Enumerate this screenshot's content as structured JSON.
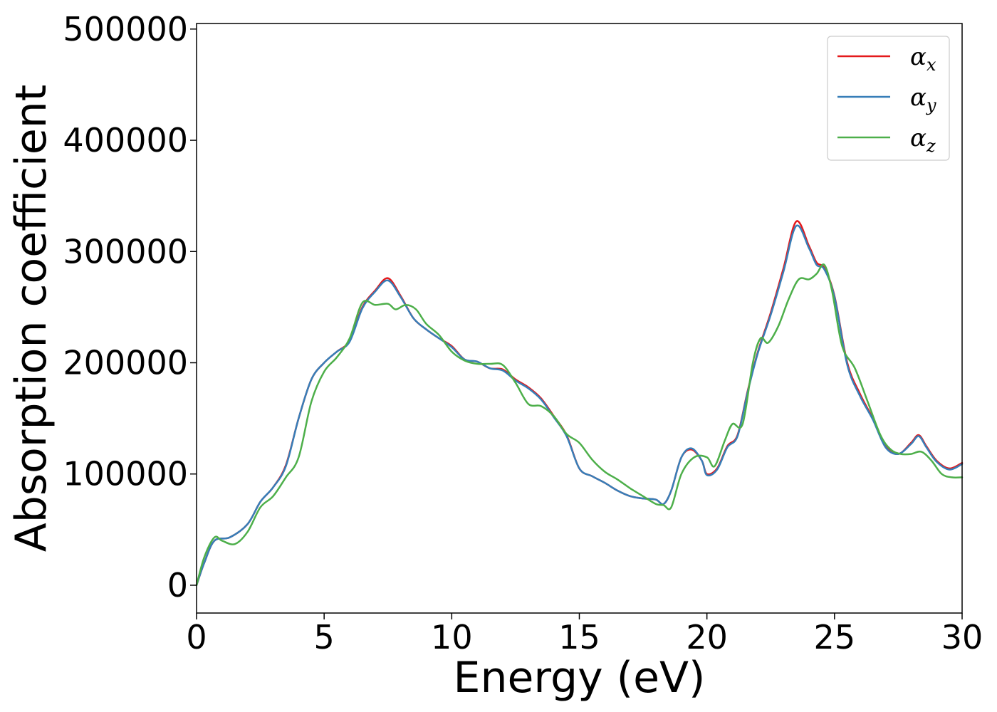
{
  "chart_data": {
    "type": "line",
    "title": "",
    "xlabel": "Energy (eV)",
    "ylabel": "Absorption coefficient",
    "xlim": [
      0,
      30
    ],
    "ylim": [
      -25000,
      505000
    ],
    "xticks": [
      0,
      5,
      10,
      15,
      20,
      25,
      30
    ],
    "xtick_labels": [
      "0",
      "5",
      "10",
      "15",
      "20",
      "25",
      "30"
    ],
    "yticks": [
      0,
      100000,
      200000,
      300000,
      400000,
      500000
    ],
    "ytick_labels": [
      "0",
      "100000",
      "200000",
      "300000",
      "400000",
      "500000"
    ],
    "grid": false,
    "legend_position": "top-right",
    "series": [
      {
        "name": "αx",
        "symbol": "α",
        "subscript": "x",
        "color": "#e41a1c",
        "x": [
          0,
          0.3,
          0.7,
          1.3,
          2.0,
          2.5,
          3.0,
          3.5,
          4.0,
          4.5,
          5.0,
          5.5,
          6.0,
          6.5,
          7.0,
          7.5,
          8.0,
          8.5,
          9.0,
          9.5,
          10.0,
          10.5,
          11.0,
          11.5,
          12.0,
          12.5,
          13.0,
          13.5,
          14.0,
          14.5,
          15.0,
          15.5,
          16.0,
          16.5,
          17.0,
          17.5,
          18.0,
          18.3,
          18.6,
          19.0,
          19.4,
          19.8,
          20.0,
          20.4,
          20.8,
          21.2,
          21.6,
          22.0,
          22.5,
          23.0,
          23.5,
          24.0,
          24.3,
          24.6,
          25.0,
          25.5,
          26.0,
          26.5,
          27.0,
          27.5,
          28.0,
          28.3,
          28.6,
          29.0,
          29.5,
          30.0
        ],
        "y": [
          0,
          20000,
          40000,
          43000,
          55000,
          75000,
          88000,
          108000,
          150000,
          185000,
          200000,
          210000,
          220000,
          250000,
          265000,
          276000,
          260000,
          240000,
          230000,
          222000,
          215000,
          203000,
          201000,
          195000,
          194000,
          185000,
          178000,
          168000,
          152000,
          135000,
          105000,
          98000,
          92000,
          85000,
          80000,
          78000,
          77000,
          73000,
          85000,
          115000,
          122000,
          112000,
          100000,
          105000,
          125000,
          135000,
          175000,
          210000,
          245000,
          285000,
          327000,
          305000,
          290000,
          285000,
          260000,
          200000,
          172000,
          150000,
          125000,
          118000,
          128000,
          135000,
          125000,
          112000,
          105000,
          110000
        ]
      },
      {
        "name": "αy",
        "symbol": "α",
        "subscript": "y",
        "color": "#377eb8",
        "x": [
          0,
          0.3,
          0.7,
          1.3,
          2.0,
          2.5,
          3.0,
          3.5,
          4.0,
          4.5,
          5.0,
          5.5,
          6.0,
          6.5,
          7.0,
          7.5,
          8.0,
          8.5,
          9.0,
          9.5,
          10.0,
          10.5,
          11.0,
          11.5,
          12.0,
          12.5,
          13.0,
          13.5,
          14.0,
          14.5,
          15.0,
          15.5,
          16.0,
          16.5,
          17.0,
          17.5,
          18.0,
          18.3,
          18.6,
          19.0,
          19.4,
          19.8,
          20.0,
          20.4,
          20.8,
          21.2,
          21.6,
          22.0,
          22.5,
          23.0,
          23.5,
          24.0,
          24.3,
          24.6,
          25.0,
          25.5,
          26.0,
          26.5,
          27.0,
          27.5,
          28.0,
          28.3,
          28.6,
          29.0,
          29.5,
          30.0
        ],
        "y": [
          0,
          20000,
          40000,
          43000,
          55000,
          75000,
          88000,
          107000,
          150000,
          185000,
          200000,
          210000,
          219000,
          249000,
          264000,
          274000,
          259000,
          240000,
          230000,
          222000,
          214000,
          203000,
          201000,
          195000,
          193000,
          184000,
          177000,
          167000,
          151000,
          134000,
          105000,
          98000,
          92000,
          85000,
          80000,
          78000,
          77000,
          73000,
          85000,
          115000,
          123000,
          112000,
          99000,
          104000,
          124000,
          134000,
          174000,
          209000,
          243000,
          282000,
          323000,
          303000,
          288000,
          284000,
          259000,
          198000,
          170000,
          149000,
          124000,
          118000,
          127000,
          134000,
          124000,
          111000,
          104000,
          109000
        ]
      },
      {
        "name": "αz",
        "symbol": "α",
        "subscript": "z",
        "color": "#4daf4a",
        "x": [
          0,
          0.3,
          0.7,
          1.0,
          1.5,
          2.0,
          2.5,
          3.0,
          3.5,
          4.0,
          4.5,
          5.0,
          5.5,
          6.0,
          6.5,
          7.0,
          7.5,
          7.8,
          8.2,
          8.6,
          9.0,
          9.5,
          10.0,
          10.5,
          11.0,
          11.5,
          12.0,
          12.5,
          13.0,
          13.5,
          14.0,
          14.5,
          15.0,
          15.5,
          16.0,
          16.5,
          17.0,
          17.5,
          18.0,
          18.3,
          18.6,
          19.0,
          19.5,
          20.0,
          20.3,
          20.7,
          21.0,
          21.4,
          21.8,
          22.1,
          22.4,
          22.8,
          23.2,
          23.6,
          24.0,
          24.3,
          24.6,
          24.9,
          25.3,
          25.8,
          26.3,
          26.8,
          27.2,
          27.6,
          28.0,
          28.4,
          28.8,
          29.2,
          29.6,
          30.0
        ],
        "y": [
          0,
          25000,
          43000,
          40000,
          37000,
          48000,
          70000,
          80000,
          97000,
          115000,
          165000,
          192000,
          205000,
          222000,
          254000,
          252000,
          253000,
          248000,
          252000,
          248000,
          235000,
          225000,
          210000,
          202000,
          199000,
          199000,
          198000,
          182000,
          163000,
          161000,
          152000,
          136000,
          128000,
          113000,
          102000,
          95000,
          87000,
          80000,
          73000,
          72000,
          70000,
          100000,
          115000,
          115000,
          107000,
          130000,
          145000,
          145000,
          200000,
          222000,
          218000,
          233000,
          257000,
          275000,
          275000,
          280000,
          288000,
          265000,
          215000,
          195000,
          165000,
          135000,
          122000,
          118000,
          118000,
          120000,
          112000,
          100000,
          97000,
          97000
        ]
      }
    ]
  }
}
